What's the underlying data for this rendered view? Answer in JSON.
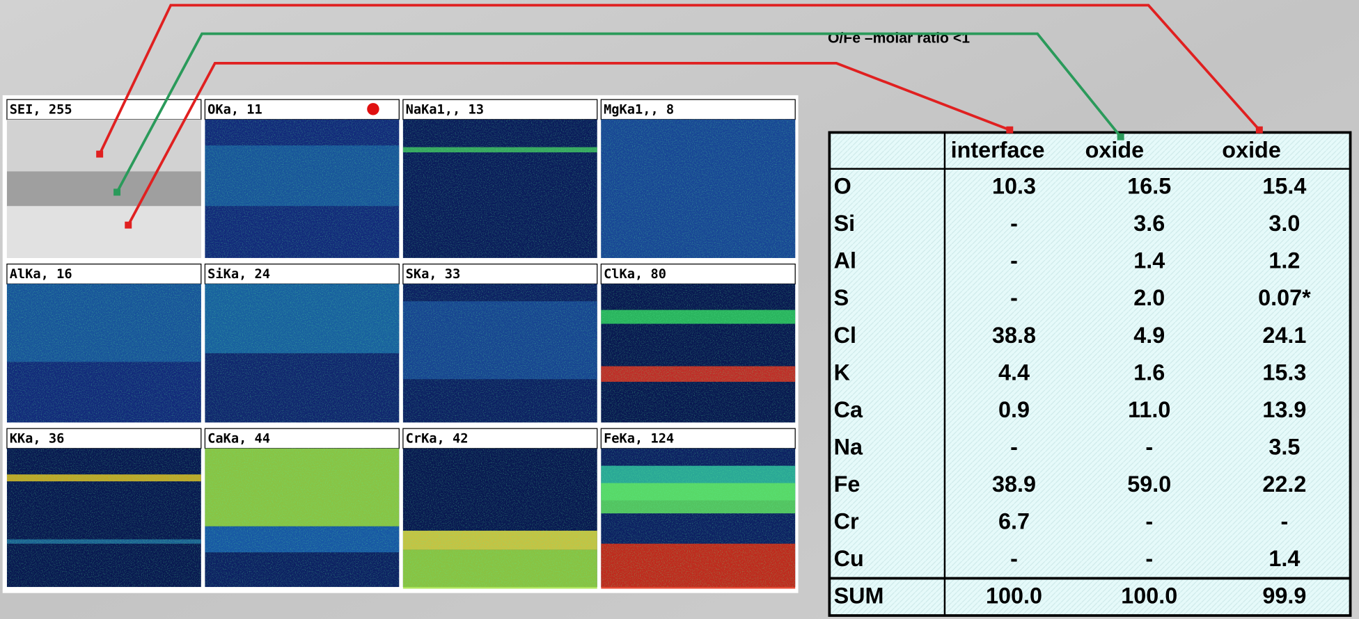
{
  "annotation": "O/Fe –molar ratio <1",
  "maps": [
    "SEI, 255",
    "OKa, 11",
    "NaKa1,, 13",
    "MgKa1,, 8",
    "AlKa, 16",
    "SiKa, 24",
    "SKa, 33",
    "ClKa, 80",
    "KKa, 36",
    "CaKa, 44",
    "CrKa, 42",
    "FeKa, 124"
  ],
  "table": {
    "header": [
      "interface",
      "oxide",
      "oxide"
    ],
    "rows": [
      [
        "O",
        "10.3",
        "16.5",
        "15.4"
      ],
      [
        "Si",
        "-",
        "3.6",
        "3.0"
      ],
      [
        "Al",
        "-",
        "1.4",
        "1.2"
      ],
      [
        "S",
        "-",
        "2.0",
        "0.07*"
      ],
      [
        "Cl",
        "38.8",
        "4.9",
        "24.1"
      ],
      [
        "K",
        "4.4",
        "1.6",
        "15.3"
      ],
      [
        "Ca",
        "0.9",
        "11.0",
        "13.9"
      ],
      [
        "Na",
        "-",
        "-",
        "3.5"
      ],
      [
        "Fe",
        "38.9",
        "59.0",
        "22.2"
      ],
      [
        "Cr",
        "6.7",
        "-",
        "-"
      ],
      [
        "Cu",
        "-",
        "-",
        "1.4"
      ],
      [
        "SUM",
        "100.0",
        "100.0",
        "99.9"
      ]
    ]
  }
}
